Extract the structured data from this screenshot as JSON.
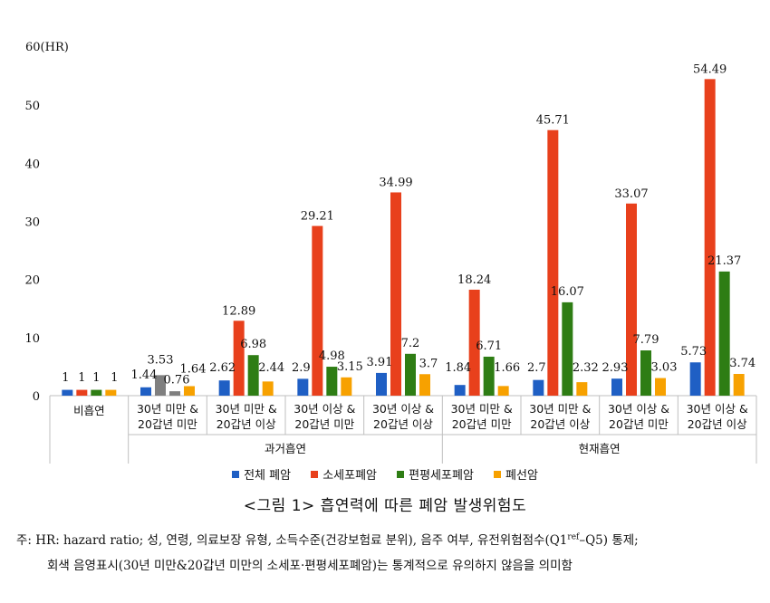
{
  "chart_data": {
    "type": "bar",
    "ylabel": "60(HR)",
    "ylim": [
      0,
      60
    ],
    "yticks": [
      0,
      10,
      20,
      30,
      40,
      50
    ],
    "series": [
      {
        "name": "전체 폐암",
        "color": "#1f5fc4"
      },
      {
        "name": "소세포폐암",
        "color": "#e8401c"
      },
      {
        "name": "편평세포폐암",
        "color": "#2e7d14"
      },
      {
        "name": "폐선암",
        "color": "#f7a100"
      }
    ],
    "muted_color": "#7f7f7f",
    "categories": [
      {
        "label": [
          "비흡연"
        ],
        "values": [
          1,
          1,
          1,
          1
        ],
        "muted": [
          false,
          false,
          false,
          false
        ]
      },
      {
        "label": [
          "30년 미만 &",
          "20갑년 미만"
        ],
        "values": [
          1.44,
          3.53,
          0.76,
          1.64
        ],
        "muted": [
          false,
          true,
          true,
          false
        ]
      },
      {
        "label": [
          "30년 미만 &",
          "20갑년 이상"
        ],
        "values": [
          2.62,
          12.89,
          6.98,
          2.44
        ],
        "muted": [
          false,
          false,
          false,
          false
        ]
      },
      {
        "label": [
          "30년 이상 &",
          "20갑년 미만"
        ],
        "values": [
          2.9,
          29.21,
          4.98,
          3.15
        ],
        "muted": [
          false,
          false,
          false,
          false
        ]
      },
      {
        "label": [
          "30년 이상 &",
          "20갑년 이상"
        ],
        "values": [
          3.91,
          34.99,
          7.2,
          3.7
        ],
        "muted": [
          false,
          false,
          false,
          false
        ]
      },
      {
        "label": [
          "30년 미만 &",
          "20갑년 미만"
        ],
        "values": [
          1.84,
          18.24,
          6.71,
          1.66
        ],
        "muted": [
          false,
          false,
          false,
          false
        ]
      },
      {
        "label": [
          "30년 미만 &",
          "20갑년 이상"
        ],
        "values": [
          2.7,
          45.71,
          16.07,
          2.32
        ],
        "muted": [
          false,
          false,
          false,
          false
        ]
      },
      {
        "label": [
          "30년 이상 &",
          "20갑년 미만"
        ],
        "values": [
          2.93,
          33.07,
          7.79,
          3.03
        ],
        "muted": [
          false,
          false,
          false,
          false
        ]
      },
      {
        "label": [
          "30년 이상 &",
          "20갑년 이상"
        ],
        "values": [
          5.73,
          54.49,
          21.37,
          3.74
        ],
        "muted": [
          false,
          false,
          false,
          false
        ]
      }
    ],
    "groups": [
      {
        "label": "과거흡연",
        "from": 1,
        "to": 4
      },
      {
        "label": "현재흡연",
        "from": 5,
        "to": 8
      }
    ]
  },
  "caption": "<그림 1> 흡연력에 따른 폐암 발생위험도",
  "note_line1_pre": "주: HR: hazard ratio; 성, 연령, 의료보장 유형, 소득수준(건강보험료 분위), 음주 여부, 유전위험점수(Q1",
  "note_line1_sup": "ref",
  "note_line1_post": "–Q5) 통제;",
  "note_line2": "회색 음영표시(30년 미만&20갑년 미만의 소세포·편평세포폐암)는 통계적으로 유의하지 않음을 의미함"
}
